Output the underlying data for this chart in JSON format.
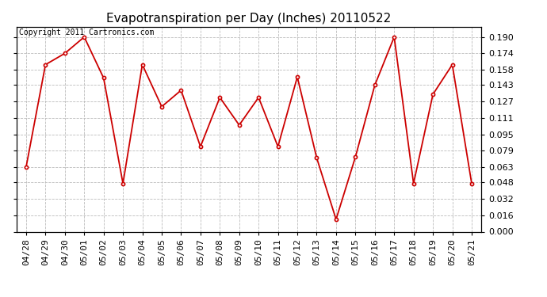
{
  "title": "Evapotranspiration per Day (Inches) 20110522",
  "copyright_text": "Copyright 2011 Cartronics.com",
  "labels": [
    "04/28",
    "04/29",
    "04/30",
    "05/01",
    "05/02",
    "05/03",
    "05/04",
    "05/05",
    "05/06",
    "05/07",
    "05/08",
    "05/09",
    "05/10",
    "05/11",
    "05/12",
    "05/13",
    "05/14",
    "05/15",
    "05/16",
    "05/17",
    "05/18",
    "05/19",
    "05/20",
    "05/21"
  ],
  "values": [
    0.063,
    0.163,
    0.174,
    0.19,
    0.15,
    0.047,
    0.163,
    0.122,
    0.138,
    0.083,
    0.131,
    0.104,
    0.131,
    0.083,
    0.151,
    0.072,
    0.012,
    0.073,
    0.143,
    0.19,
    0.047,
    0.134,
    0.163,
    0.047
  ],
  "line_color": "#cc0000",
  "marker": "o",
  "marker_size": 3,
  "background_color": "#ffffff",
  "grid_color": "#bbbbbb",
  "ylim": [
    0.0,
    0.2
  ],
  "yticks": [
    0.0,
    0.016,
    0.032,
    0.048,
    0.063,
    0.079,
    0.095,
    0.111,
    0.127,
    0.143,
    0.158,
    0.174,
    0.19
  ],
  "title_fontsize": 11,
  "copyright_fontsize": 7,
  "tick_fontsize": 8
}
